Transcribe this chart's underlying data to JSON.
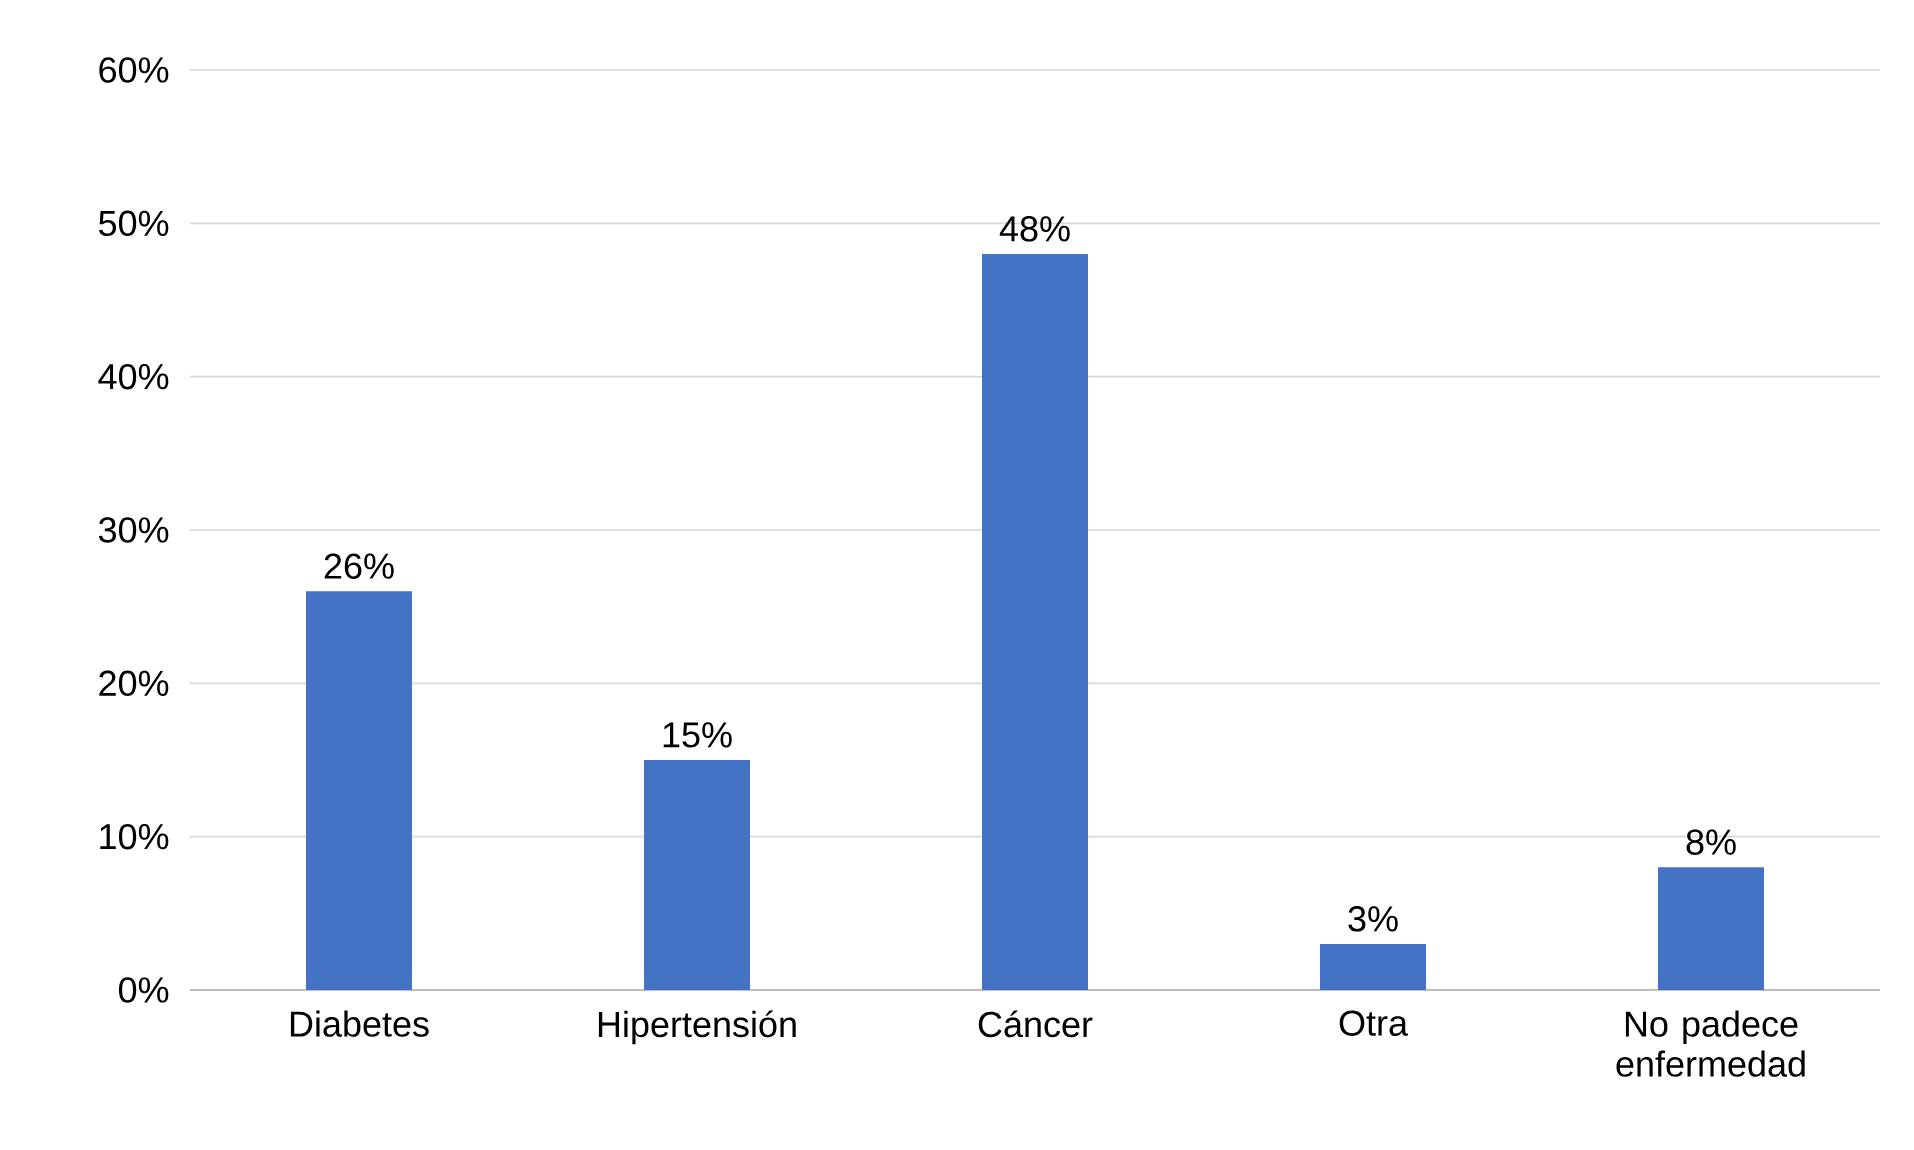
{
  "chart_data": {
    "type": "bar",
    "categories": [
      "Diabetes",
      "Hipertensión",
      "Cáncer",
      "Otra",
      "No padece enfermedad"
    ],
    "values": [
      26,
      15,
      48,
      3,
      8
    ],
    "value_labels": [
      "26%",
      "15%",
      "48%",
      "3%",
      "8%"
    ],
    "color": "#4472c4",
    "ylim": [
      0,
      60
    ],
    "yticks": [
      {
        "value": 0,
        "label": "0%"
      },
      {
        "value": 10,
        "label": "10%"
      },
      {
        "value": 20,
        "label": "20%"
      },
      {
        "value": 30,
        "label": "30%"
      },
      {
        "value": 40,
        "label": "40%"
      },
      {
        "value": 50,
        "label": "50%"
      },
      {
        "value": 60,
        "label": "60%"
      }
    ],
    "grid": "y"
  }
}
